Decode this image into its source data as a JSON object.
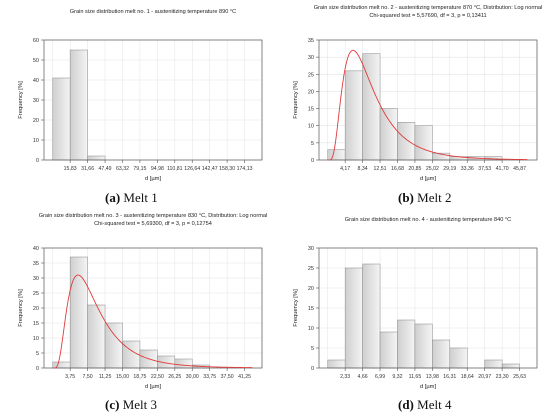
{
  "colors": {
    "bar_fill": "#dcdcdc",
    "bar_stroke": "#888888",
    "curve": "#e03a3a",
    "axis": "#555555",
    "grid": "#e3e3e3"
  },
  "chart_data": [
    {
      "type": "bar",
      "title": "Grain size distribution melt no. 1 - austenitizing temperature 890 °C",
      "subtitle": "",
      "xlabel": "d [µm]",
      "ylabel": "Frequency [%]",
      "ylim": [
        0,
        60
      ],
      "yticks": [
        "0",
        "10",
        "20",
        "30",
        "40",
        "50",
        "60"
      ],
      "xticks": [
        "15,83",
        "31,66",
        "47,49",
        "63,32",
        "79,15",
        "94,98",
        "110,81",
        "126,64",
        "142,47",
        "158,30",
        "174,13"
      ],
      "values": [
        41,
        55,
        2,
        0,
        0,
        0,
        0,
        0,
        0,
        0,
        0
      ],
      "fit": "none",
      "grid": true,
      "caption_letter": "(a)",
      "caption_text": "Melt 1"
    },
    {
      "type": "bar",
      "title": "Grain size distribution melt no. 2 - austenitizing temperature 870 °C, Distribution: Log normal",
      "subtitle": "Chi-squared test = 5,57690, df = 3, p = 0,13411",
      "xlabel": "d [µm]",
      "ylabel": "Frequency [%]",
      "ylim": [
        0,
        35
      ],
      "yticks": [
        "0",
        "5",
        "10",
        "15",
        "20",
        "25",
        "30",
        "35"
      ],
      "xticks": [
        "4,17",
        "8,34",
        "12,51",
        "16,68",
        "20,85",
        "25,02",
        "29,19",
        "33,36",
        "37,53",
        "41,70",
        "45,87"
      ],
      "values": [
        3,
        26,
        31,
        15,
        11,
        10,
        2,
        1,
        1,
        1,
        0
      ],
      "fit": "lognormal",
      "fit_peak": 32,
      "grid": true,
      "caption_letter": "(b)",
      "caption_text": "Melt 2"
    },
    {
      "type": "bar",
      "title": "Grain size distribution melt no. 3 - austenitizing temperature 830 °C, Distribution: Log normal",
      "subtitle": "Chi-squared test = 5,69300, df = 3, p = 0,12754",
      "xlabel": "d [µm]",
      "ylabel": "Frequency [%]",
      "ylim": [
        0,
        40
      ],
      "yticks": [
        "0",
        "5",
        "10",
        "15",
        "20",
        "25",
        "30",
        "35",
        "40"
      ],
      "xticks": [
        "3,75",
        "7,50",
        "11,25",
        "15,00",
        "18,75",
        "22,50",
        "26,25",
        "30,00",
        "33,75",
        "37,50",
        "41,25"
      ],
      "values": [
        2,
        37,
        21,
        15,
        9,
        6,
        4,
        3,
        1,
        0,
        0
      ],
      "fit": "lognormal",
      "fit_peak": 31,
      "grid": true,
      "caption_letter": "(c)",
      "caption_text": "Melt 3"
    },
    {
      "type": "bar",
      "title": "Grain size distribution melt no. 4 - austenitizing temperature 840 °C",
      "subtitle": "",
      "xlabel": "d [µm]",
      "ylabel": "Frequency [%]",
      "ylim": [
        0,
        30
      ],
      "yticks": [
        "0",
        "5",
        "10",
        "15",
        "20",
        "25",
        "30"
      ],
      "xticks": [
        "2,33",
        "4,66",
        "6,99",
        "9,32",
        "11,65",
        "13,98",
        "16,31",
        "18,64",
        "20,97",
        "23,30",
        "25,63"
      ],
      "values": [
        2,
        25,
        26,
        9,
        12,
        11,
        7,
        5,
        0,
        2,
        1
      ],
      "fit": "none",
      "grid": true,
      "caption_letter": "(d)",
      "caption_text": "Melt 4"
    }
  ]
}
